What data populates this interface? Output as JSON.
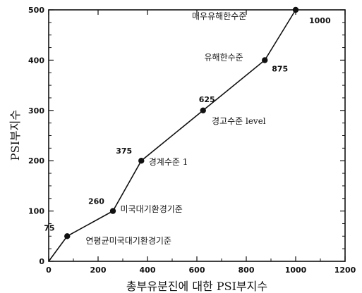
{
  "chart_data": {
    "type": "line",
    "xlabel": "총부유분진에 대한 PSI부지수",
    "ylabel": "PSI부지수",
    "xlim": [
      0,
      1200
    ],
    "ylim": [
      0,
      500
    ],
    "x_ticks": [
      "0",
      "200",
      "400",
      "600",
      "800",
      "1000",
      "1200"
    ],
    "y_ticks": [
      "0",
      "100",
      "200",
      "300",
      "400",
      "500"
    ],
    "grid": false,
    "series": [
      {
        "x": [
          0,
          75,
          260,
          375,
          625,
          875,
          1000
        ],
        "y": [
          0,
          50,
          100,
          200,
          300,
          400,
          500
        ],
        "point_labels": [
          "",
          "75",
          "260",
          "375",
          "625",
          "875",
          "1000"
        ]
      }
    ],
    "annotations": [
      "연평균미국대기환경기준",
      "미국대기환경기준",
      "경계수준 1",
      "경고수준 level",
      "유해한수준",
      "매우유해한수준"
    ]
  }
}
